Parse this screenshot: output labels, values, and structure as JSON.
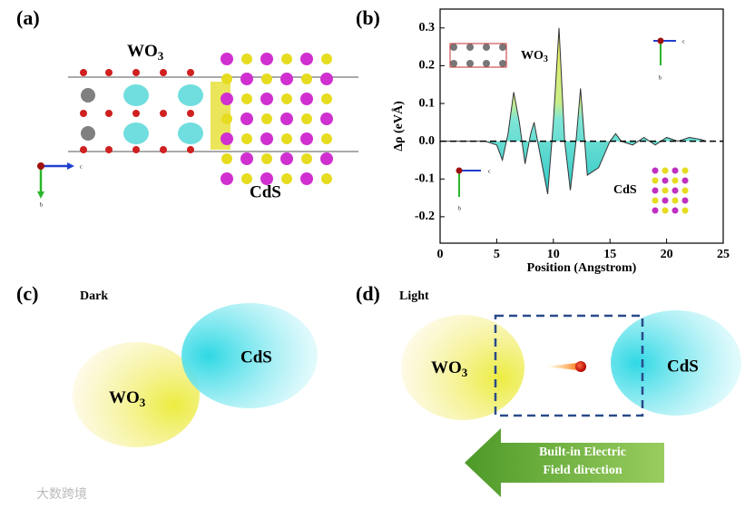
{
  "panels": {
    "a": {
      "label": "(a)",
      "wo3": {
        "base": "WO",
        "sub": "3"
      },
      "cds": "CdS",
      "axis_c": "c",
      "axis_b": "b"
    },
    "b": {
      "label": "(b)",
      "wo3": {
        "base": "WO",
        "sub": "3"
      },
      "cds": "CdS",
      "axis_c_top": "c",
      "axis_b_top": "b",
      "axis_c_bottom": "c",
      "axis_b_bottom": "b"
    },
    "c": {
      "label": "(c)",
      "title": "Dark",
      "wo3": {
        "base": "WO",
        "sub": "3"
      },
      "cds": "CdS"
    },
    "d": {
      "label": "(d)",
      "title": "Light",
      "wo3": {
        "base": "WO",
        "sub": "3"
      },
      "cds": "CdS",
      "arrow_text": [
        "Built-in Electric",
        "Field direction"
      ]
    }
  },
  "chart_data": {
    "type": "line",
    "x_label": "Position (Angstrom)",
    "y_label": "Δρ (eVÅ)",
    "x": [
      0,
      4,
      5,
      5.5,
      6,
      6.5,
      7,
      7.5,
      8,
      8.3,
      8.8,
      9.5,
      10,
      10.5,
      11,
      11.5,
      12,
      12.4,
      13,
      14,
      15,
      15.5,
      16,
      17,
      18,
      19,
      20,
      21,
      22,
      23,
      23.5
    ],
    "series": [
      {
        "color": "#333333",
        "values": [
          0,
          0,
          -0.01,
          -0.05,
          0.02,
          0.13,
          0.05,
          -0.06,
          0.02,
          0.05,
          -0.03,
          -0.14,
          0.05,
          0.3,
          0.0,
          -0.13,
          0.0,
          0.14,
          -0.09,
          -0.07,
          0.0,
          0.02,
          0.0,
          -0.01,
          0.01,
          -0.01,
          0.01,
          0.0,
          0.01,
          0.005,
          0
        ]
      }
    ],
    "xlim": [
      0,
      25
    ],
    "xticks": [
      0,
      5,
      10,
      15,
      20,
      25
    ],
    "ylim": [
      -0.27,
      0.35
    ],
    "yticks": [
      -0.2,
      -0.1,
      {
        "value": 0,
        "label": "0.0"
      },
      0.1,
      0.2,
      0.3
    ],
    "zero_line": true
  },
  "watermark": "大数跨境"
}
